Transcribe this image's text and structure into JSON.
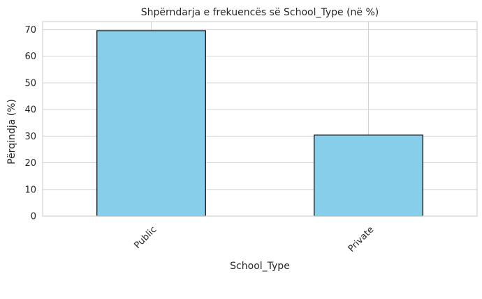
{
  "chart_data": {
    "type": "bar",
    "title": "Shpërndarja e frekuencës së School_Type (në %)",
    "xlabel": "School_Type",
    "ylabel": "Përqindja (%)",
    "categories": [
      "Public",
      "Private"
    ],
    "values": [
      69.6,
      30.4
    ],
    "ylim": [
      0,
      73
    ],
    "yticks": [
      0,
      10,
      20,
      30,
      40,
      50,
      60,
      70
    ],
    "grid": true,
    "colors": {
      "bar_fill": "#87ceeb",
      "bar_edge": "#000000",
      "grid": "#d3d3d3",
      "spine": "#d3d3d3",
      "text": "#262626"
    }
  }
}
